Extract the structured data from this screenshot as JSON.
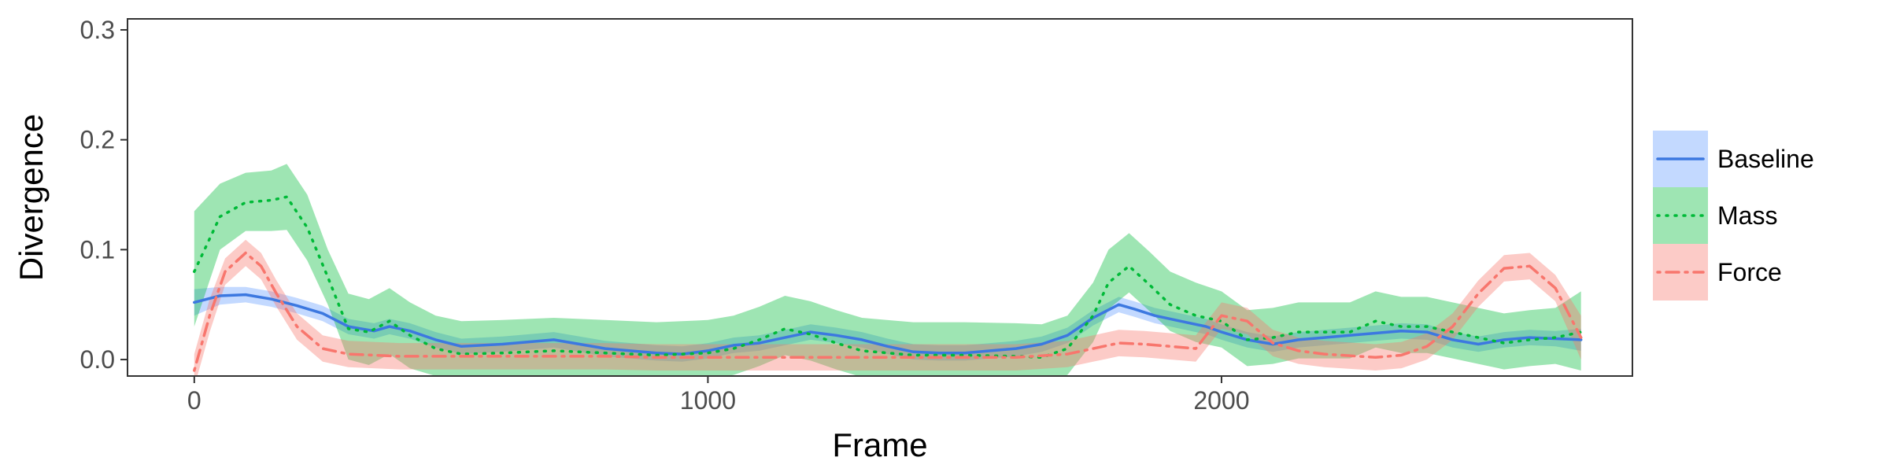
{
  "chart_data": {
    "type": "area",
    "title": "",
    "xlabel": "Frame",
    "ylabel": "Divergence",
    "xlim": [
      -130,
      2800
    ],
    "ylim": [
      -0.015,
      0.31
    ],
    "x_ticks": [
      0,
      1000,
      2000
    ],
    "x_tick_labels": [
      "0",
      "1000",
      "2000"
    ],
    "y_ticks": [
      0.0,
      0.1,
      0.2,
      0.3
    ],
    "y_tick_labels": [
      "0.0",
      "0.1",
      "0.2",
      "0.3"
    ],
    "grid": false,
    "legend_position": "right",
    "series": [
      {
        "name": "Baseline",
        "color": "#619CFF",
        "line_color": "#3C78E0",
        "line_style": "solid",
        "x": [
          0,
          50,
          100,
          150,
          200,
          250,
          300,
          350,
          380,
          420,
          470,
          520,
          600,
          700,
          800,
          900,
          950,
          1000,
          1050,
          1100,
          1150,
          1200,
          1250,
          1300,
          1350,
          1400,
          1450,
          1500,
          1550,
          1600,
          1650,
          1700,
          1750,
          1800,
          1830,
          1870,
          1920,
          1970,
          2000,
          2050,
          2100,
          2150,
          2200,
          2250,
          2300,
          2350,
          2400,
          2450,
          2500,
          2550,
          2600,
          2650,
          2700
        ],
        "y": [
          0.052,
          0.058,
          0.059,
          0.055,
          0.049,
          0.042,
          0.03,
          0.026,
          0.03,
          0.026,
          0.018,
          0.012,
          0.014,
          0.018,
          0.01,
          0.006,
          0.005,
          0.008,
          0.013,
          0.015,
          0.02,
          0.025,
          0.022,
          0.018,
          0.012,
          0.007,
          0.006,
          0.006,
          0.008,
          0.01,
          0.014,
          0.022,
          0.038,
          0.05,
          0.046,
          0.04,
          0.035,
          0.03,
          0.025,
          0.018,
          0.014,
          0.018,
          0.02,
          0.022,
          0.024,
          0.026,
          0.025,
          0.018,
          0.014,
          0.018,
          0.02,
          0.019,
          0.018
        ],
        "lower": [
          0.04,
          0.05,
          0.052,
          0.048,
          0.042,
          0.035,
          0.023,
          0.019,
          0.023,
          0.019,
          0.011,
          0.005,
          0.007,
          0.011,
          0.003,
          -0.001,
          -0.002,
          0.001,
          0.006,
          0.008,
          0.013,
          0.018,
          0.015,
          0.011,
          0.005,
          0.0,
          -0.001,
          -0.001,
          0.001,
          0.003,
          0.007,
          0.015,
          0.031,
          0.043,
          0.039,
          0.033,
          0.028,
          0.023,
          0.018,
          0.011,
          0.007,
          0.011,
          0.013,
          0.015,
          0.017,
          0.019,
          0.018,
          0.011,
          0.007,
          0.011,
          0.013,
          0.012,
          0.008
        ],
        "upper": [
          0.064,
          0.066,
          0.066,
          0.062,
          0.056,
          0.049,
          0.037,
          0.033,
          0.037,
          0.033,
          0.025,
          0.019,
          0.021,
          0.025,
          0.017,
          0.013,
          0.012,
          0.015,
          0.02,
          0.022,
          0.027,
          0.032,
          0.029,
          0.025,
          0.019,
          0.014,
          0.013,
          0.013,
          0.015,
          0.017,
          0.021,
          0.029,
          0.045,
          0.057,
          0.053,
          0.047,
          0.042,
          0.037,
          0.032,
          0.025,
          0.021,
          0.025,
          0.027,
          0.029,
          0.031,
          0.033,
          0.032,
          0.025,
          0.021,
          0.025,
          0.027,
          0.026,
          0.028
        ]
      },
      {
        "name": "Mass",
        "color": "#00BA38",
        "line_color": "#00BA38",
        "line_style": "dotted",
        "x": [
          0,
          50,
          100,
          150,
          180,
          220,
          260,
          300,
          340,
          380,
          420,
          470,
          520,
          600,
          700,
          800,
          900,
          1000,
          1050,
          1100,
          1150,
          1200,
          1250,
          1300,
          1400,
          1500,
          1600,
          1650,
          1700,
          1750,
          1780,
          1820,
          1860,
          1900,
          1950,
          2000,
          2050,
          2100,
          2150,
          2200,
          2250,
          2300,
          2350,
          2400,
          2450,
          2500,
          2550,
          2600,
          2650,
          2700
        ],
        "y": [
          0.08,
          0.13,
          0.143,
          0.145,
          0.148,
          0.12,
          0.075,
          0.028,
          0.025,
          0.035,
          0.022,
          0.01,
          0.005,
          0.006,
          0.008,
          0.006,
          0.004,
          0.006,
          0.01,
          0.018,
          0.028,
          0.023,
          0.015,
          0.008,
          0.004,
          0.004,
          0.003,
          0.002,
          0.01,
          0.04,
          0.07,
          0.085,
          0.068,
          0.05,
          0.04,
          0.035,
          0.018,
          0.02,
          0.025,
          0.025,
          0.025,
          0.035,
          0.03,
          0.03,
          0.025,
          0.02,
          0.015,
          0.018,
          0.02,
          0.025
        ],
        "lower": [
          0.03,
          0.1,
          0.117,
          0.117,
          0.118,
          0.09,
          0.05,
          0.0,
          -0.005,
          0.005,
          -0.008,
          -0.015,
          -0.018,
          -0.018,
          -0.016,
          -0.018,
          -0.02,
          -0.018,
          -0.014,
          -0.006,
          0.004,
          -0.001,
          -0.009,
          -0.016,
          -0.02,
          -0.02,
          -0.021,
          -0.022,
          -0.014,
          0.016,
          0.046,
          0.061,
          0.044,
          0.026,
          0.016,
          0.011,
          -0.006,
          -0.004,
          0.001,
          0.001,
          0.001,
          0.011,
          0.006,
          0.006,
          0.001,
          -0.004,
          -0.009,
          -0.006,
          -0.004,
          -0.01
        ],
        "upper": [
          0.135,
          0.16,
          0.17,
          0.172,
          0.178,
          0.15,
          0.1,
          0.06,
          0.055,
          0.065,
          0.052,
          0.04,
          0.035,
          0.036,
          0.038,
          0.036,
          0.034,
          0.036,
          0.04,
          0.048,
          0.058,
          0.053,
          0.045,
          0.038,
          0.034,
          0.034,
          0.033,
          0.032,
          0.04,
          0.07,
          0.1,
          0.115,
          0.098,
          0.08,
          0.07,
          0.062,
          0.045,
          0.047,
          0.052,
          0.052,
          0.052,
          0.062,
          0.057,
          0.057,
          0.052,
          0.047,
          0.042,
          0.045,
          0.047,
          0.062
        ]
      },
      {
        "name": "Force",
        "color": "#F8766D",
        "line_color": "#F8766D",
        "line_style": "dotdash",
        "x": [
          0,
          30,
          60,
          100,
          130,
          160,
          200,
          250,
          300,
          400,
          500,
          600,
          700,
          800,
          900,
          1000,
          1100,
          1200,
          1300,
          1400,
          1500,
          1600,
          1700,
          1750,
          1800,
          1850,
          1900,
          1950,
          2000,
          2050,
          2100,
          2150,
          2200,
          2300,
          2350,
          2400,
          2450,
          2500,
          2550,
          2600,
          2650,
          2700
        ],
        "y": [
          -0.01,
          0.04,
          0.08,
          0.097,
          0.085,
          0.06,
          0.03,
          0.01,
          0.005,
          0.003,
          0.003,
          0.003,
          0.003,
          0.003,
          0.002,
          0.002,
          0.002,
          0.002,
          0.002,
          0.002,
          0.002,
          0.002,
          0.005,
          0.01,
          0.015,
          0.014,
          0.012,
          0.01,
          0.04,
          0.035,
          0.015,
          0.008,
          0.005,
          0.002,
          0.004,
          0.012,
          0.03,
          0.06,
          0.083,
          0.085,
          0.065,
          0.02
        ],
        "lower": [
          -0.025,
          0.025,
          0.068,
          0.085,
          0.073,
          0.048,
          0.018,
          -0.002,
          -0.007,
          -0.009,
          -0.009,
          -0.009,
          -0.009,
          -0.009,
          -0.01,
          -0.01,
          -0.01,
          -0.01,
          -0.01,
          -0.01,
          -0.01,
          -0.01,
          -0.007,
          -0.002,
          0.003,
          0.002,
          0.0,
          -0.002,
          0.028,
          0.023,
          0.003,
          -0.004,
          -0.007,
          -0.01,
          -0.008,
          0.0,
          0.018,
          0.048,
          0.071,
          0.073,
          0.053,
          0.0
        ],
        "upper": [
          0.005,
          0.055,
          0.092,
          0.109,
          0.097,
          0.072,
          0.042,
          0.022,
          0.017,
          0.015,
          0.015,
          0.015,
          0.015,
          0.015,
          0.014,
          0.014,
          0.014,
          0.014,
          0.014,
          0.014,
          0.014,
          0.014,
          0.017,
          0.022,
          0.027,
          0.026,
          0.024,
          0.022,
          0.052,
          0.047,
          0.027,
          0.02,
          0.017,
          0.014,
          0.016,
          0.024,
          0.042,
          0.072,
          0.095,
          0.097,
          0.077,
          0.04
        ]
      }
    ]
  }
}
